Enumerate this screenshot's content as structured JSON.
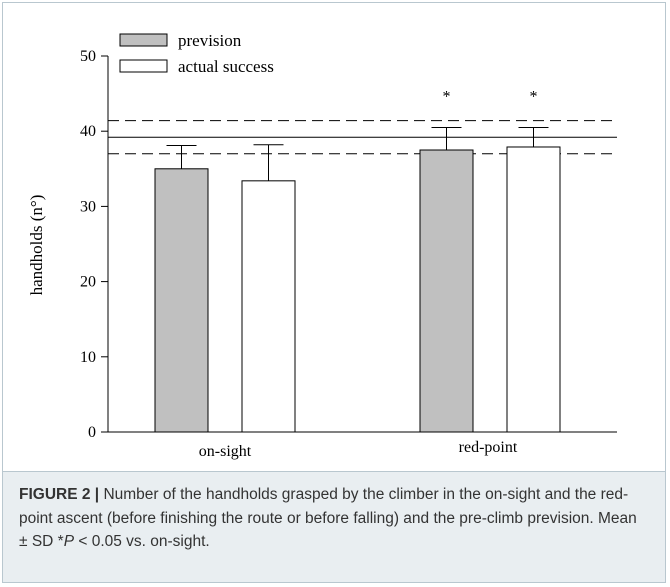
{
  "chart_data": {
    "type": "bar",
    "categories": [
      "on-sight",
      "red-point"
    ],
    "series": [
      {
        "name": "prevision",
        "values": [
          35.0,
          37.5
        ],
        "sd": [
          3.1,
          3.0
        ],
        "color": "#c0c0c0"
      },
      {
        "name": "actual success",
        "values": [
          33.4,
          37.9
        ],
        "sd": [
          4.8,
          2.6
        ],
        "color": "#ffffff"
      }
    ],
    "significance": [
      {
        "category": "red-point",
        "series": "prevision",
        "mark": "*"
      },
      {
        "category": "red-point",
        "series": "actual success",
        "mark": "*"
      }
    ],
    "reference_lines": {
      "mean": 39.2,
      "upper": 41.4,
      "lower": 37.0
    },
    "ylabel": "handholds (n°)",
    "xlabel": "",
    "ylim": [
      0,
      50
    ],
    "yticks": [
      "0",
      "10",
      "20",
      "30",
      "40",
      "50"
    ],
    "legend_position": "top-left",
    "grid": false
  },
  "caption": {
    "label": "FIGURE 2 |",
    "text_1": " Number of the handholds grasped by the climber in the on-sight and the red-point ascent (before finishing the route or before falling) and the pre-climb prevision. Mean ± SD *",
    "p_symbol": "P",
    "text_2": " < 0.05 vs. on-sight."
  }
}
